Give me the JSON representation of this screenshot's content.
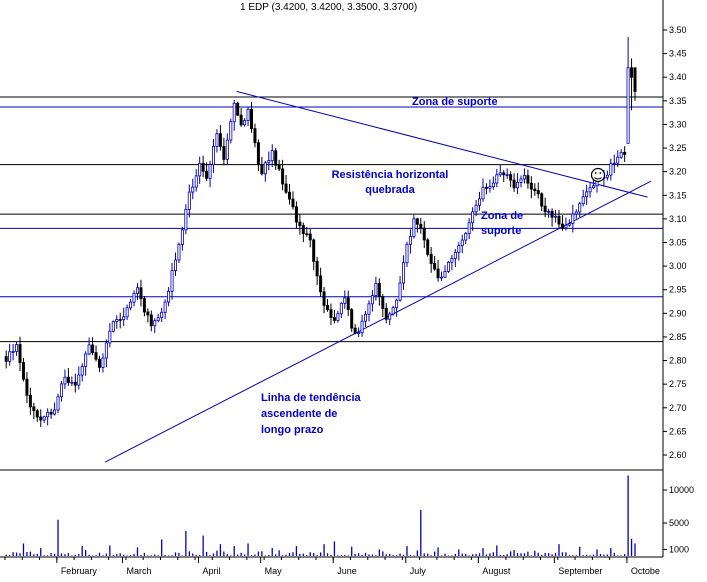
{
  "title": "1 EDP (3.4200, 3.4200, 3.3500, 3.3700)",
  "annotations": {
    "zona_top": "Zona de suporte",
    "resistencia_1": "Resistência horizontal",
    "resistencia_2": "quebrada",
    "zona_mid_1": "Zona de",
    "zona_mid_2": "suporte",
    "tendencia_1": "Linha de tendência",
    "tendencia_2": "ascendente de",
    "tendencia_3": "longo prazo"
  },
  "icons": {
    "smiley": "smiley-face"
  },
  "colors": {
    "up": "#0000bb",
    "down": "#000000",
    "volume": "#0000bb",
    "annotation": "#0000cc",
    "line_black": "#000000",
    "line_blue": "#0000bb",
    "axis": "#000000"
  },
  "chart_data": {
    "type": "candlestick+volume",
    "instrument": "1 EDP",
    "last_ohlc": {
      "open": 3.42,
      "high": 3.42,
      "low": 3.35,
      "close": 3.37
    },
    "price_axis": {
      "min": 2.6,
      "max": 3.5,
      "tick_step": 0.05
    },
    "volume_axis": {
      "ticks": [
        10000,
        5000,
        1000
      ]
    },
    "months": [
      "February",
      "March",
      "April",
      "May",
      "June",
      "July",
      "August",
      "September",
      "October"
    ],
    "month_start_days": [
      15,
      34,
      56,
      74,
      95,
      116,
      137,
      159,
      180
    ],
    "total_days": 183,
    "close_keypoints": [
      [
        0,
        2.8
      ],
      [
        3,
        2.84
      ],
      [
        6,
        2.72
      ],
      [
        10,
        2.67
      ],
      [
        14,
        2.7
      ],
      [
        17,
        2.77
      ],
      [
        20,
        2.74
      ],
      [
        24,
        2.83
      ],
      [
        27,
        2.79
      ],
      [
        31,
        2.88
      ],
      [
        34,
        2.9
      ],
      [
        38,
        2.95
      ],
      [
        42,
        2.87
      ],
      [
        46,
        2.92
      ],
      [
        50,
        3.05
      ],
      [
        53,
        3.15
      ],
      [
        56,
        3.22
      ],
      [
        58,
        3.18
      ],
      [
        61,
        3.28
      ],
      [
        63,
        3.22
      ],
      [
        66,
        3.35
      ],
      [
        68,
        3.3
      ],
      [
        70,
        3.33
      ],
      [
        73,
        3.22
      ],
      [
        74,
        3.2
      ],
      [
        77,
        3.24
      ],
      [
        80,
        3.18
      ],
      [
        84,
        3.1
      ],
      [
        88,
        3.05
      ],
      [
        92,
        2.92
      ],
      [
        95,
        2.88
      ],
      [
        98,
        2.93
      ],
      [
        101,
        2.85
      ],
      [
        104,
        2.9
      ],
      [
        107,
        2.96
      ],
      [
        110,
        2.89
      ],
      [
        113,
        2.93
      ],
      [
        116,
        3.04
      ],
      [
        118,
        3.1
      ],
      [
        120,
        3.08
      ],
      [
        123,
        3.0
      ],
      [
        126,
        2.97
      ],
      [
        129,
        3.02
      ],
      [
        132,
        3.05
      ],
      [
        135,
        3.12
      ],
      [
        138,
        3.16
      ],
      [
        141,
        3.18
      ],
      [
        144,
        3.2
      ],
      [
        147,
        3.17
      ],
      [
        150,
        3.19
      ],
      [
        153,
        3.16
      ],
      [
        156,
        3.12
      ],
      [
        159,
        3.1
      ],
      [
        162,
        3.08
      ],
      [
        165,
        3.12
      ],
      [
        168,
        3.15
      ],
      [
        171,
        3.18
      ],
      [
        174,
        3.2
      ],
      [
        176,
        3.22
      ],
      [
        179,
        3.24
      ],
      [
        180,
        3.42
      ],
      [
        181,
        3.4
      ],
      [
        182,
        3.37
      ]
    ],
    "ohlc_overrides": {
      "180": {
        "o": 3.26,
        "h": 3.485,
        "l": 3.26,
        "c": 3.42
      },
      "181": {
        "o": 3.42,
        "h": 3.44,
        "l": 3.33,
        "c": 3.4
      },
      "182": {
        "o": 3.42,
        "h": 3.42,
        "l": 3.35,
        "c": 3.37
      }
    },
    "volume_spikes": [
      [
        5,
        1900
      ],
      [
        10,
        1200
      ],
      [
        15,
        5500
      ],
      [
        22,
        1500
      ],
      [
        30,
        1600
      ],
      [
        38,
        1300
      ],
      [
        45,
        2500
      ],
      [
        52,
        3800
      ],
      [
        57,
        3100
      ],
      [
        62,
        1800
      ],
      [
        66,
        1500
      ],
      [
        70,
        1900
      ],
      [
        77,
        1200
      ],
      [
        84,
        1500
      ],
      [
        92,
        1800
      ],
      [
        95,
        2200
      ],
      [
        100,
        1400
      ],
      [
        108,
        1000
      ],
      [
        116,
        1500
      ],
      [
        120,
        7000
      ],
      [
        125,
        1300
      ],
      [
        131,
        1000
      ],
      [
        138,
        1200
      ],
      [
        142,
        1600
      ],
      [
        147,
        900
      ],
      [
        153,
        800
      ],
      [
        160,
        1800
      ],
      [
        166,
        1400
      ],
      [
        171,
        1000
      ],
      [
        175,
        1200
      ],
      [
        180,
        12200
      ],
      [
        181,
        2600
      ],
      [
        182,
        1900
      ]
    ],
    "volume_base_max": 900,
    "horizontal_lines": [
      {
        "price": 3.358,
        "color": "black"
      },
      {
        "price": 3.337,
        "color": "blue"
      },
      {
        "price": 3.215,
        "color": "black"
      },
      {
        "price": 3.11,
        "color": "black"
      },
      {
        "price": 3.08,
        "color": "blue"
      },
      {
        "price": 2.935,
        "color": "blue"
      },
      {
        "price": 2.84,
        "color": "black"
      }
    ],
    "trendlines": [
      {
        "name": "descending-resistance",
        "from_day": 67,
        "from_price": 3.37,
        "to_day": 186,
        "to_price": 3.146
      },
      {
        "name": "ascending-support",
        "from_day": 29,
        "from_price": 2.585,
        "to_day": 187,
        "to_price": 3.18
      }
    ]
  }
}
